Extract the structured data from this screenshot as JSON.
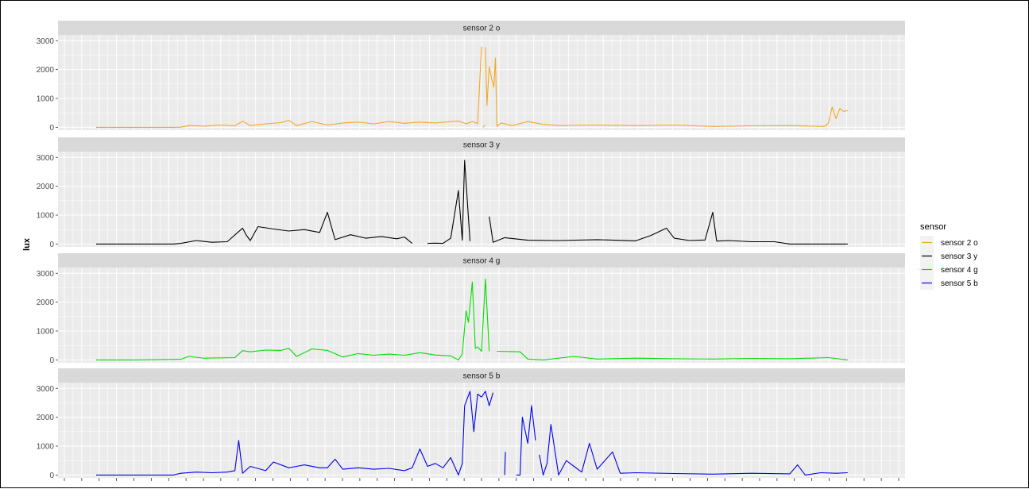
{
  "chart_data": {
    "type": "line",
    "ylabel": "lux",
    "xlabel": "",
    "ylim": [
      -100,
      3200
    ],
    "yticks": [
      0,
      1000,
      2000,
      3000
    ],
    "ytick_labels": [
      "0",
      "1000",
      "2000",
      "3000"
    ],
    "xlim": [
      0,
      1000
    ],
    "grid": true,
    "legend": {
      "title": "sensor",
      "placement": "right"
    },
    "colors": {
      "panel_bg": "#ebebeb",
      "strip_bg": "#d9d9d9",
      "grid": "#ffffff"
    },
    "series": [
      {
        "name": "sensor 2 o",
        "facet_label": "sensor 2 o",
        "color": "#f5a623",
        "segments": [
          [
            [
              0,
              0
            ],
            [
              50,
              0
            ],
            [
              100,
              0
            ],
            [
              110,
              5
            ],
            [
              120,
              60
            ],
            [
              140,
              40
            ],
            [
              160,
              80
            ],
            [
              180,
              50
            ],
            [
              190,
              210
            ],
            [
              200,
              60
            ],
            [
              220,
              120
            ],
            [
              240,
              160
            ],
            [
              250,
              240
            ],
            [
              260,
              60
            ],
            [
              280,
              200
            ],
            [
              300,
              80
            ],
            [
              320,
              150
            ],
            [
              340,
              180
            ],
            [
              360,
              120
            ],
            [
              380,
              200
            ],
            [
              400,
              140
            ],
            [
              420,
              180
            ],
            [
              440,
              150
            ],
            [
              460,
              200
            ],
            [
              470,
              220
            ],
            [
              480,
              120
            ],
            [
              488,
              200
            ],
            [
              495,
              130
            ],
            [
              500,
              2800
            ]
          ],
          [
            [
              502,
              0
            ],
            [
              504,
              80
            ]
          ],
          [
            [
              505,
              2780
            ],
            [
              507,
              760
            ],
            [
              510,
              2100
            ],
            [
              513,
              1700
            ],
            [
              516,
              1400
            ],
            [
              518,
              2400
            ],
            [
              520,
              30
            ],
            [
              525,
              150
            ],
            [
              540,
              60
            ],
            [
              560,
              200
            ],
            [
              580,
              100
            ],
            [
              600,
              60
            ],
            [
              650,
              80
            ],
            [
              700,
              60
            ],
            [
              750,
              80
            ],
            [
              800,
              30
            ],
            [
              850,
              50
            ],
            [
              900,
              60
            ],
            [
              945,
              30
            ],
            [
              950,
              140
            ],
            [
              955,
              700
            ],
            [
              960,
              300
            ],
            [
              965,
              650
            ],
            [
              970,
              550
            ],
            [
              975,
              580
            ]
          ]
        ]
      },
      {
        "name": "sensor 3 y",
        "facet_label": "sensor 3 y",
        "color": "#000000",
        "segments": [
          [
            [
              0,
              0
            ],
            [
              50,
              0
            ],
            [
              100,
              0
            ],
            [
              110,
              20
            ],
            [
              130,
              120
            ],
            [
              150,
              60
            ],
            [
              170,
              80
            ],
            [
              190,
              550
            ],
            [
              195,
              300
            ],
            [
              200,
              120
            ],
            [
              210,
              600
            ],
            [
              230,
              520
            ],
            [
              250,
              450
            ],
            [
              270,
              500
            ],
            [
              290,
              400
            ],
            [
              300,
              1100
            ],
            [
              310,
              150
            ],
            [
              330,
              320
            ],
            [
              350,
              200
            ],
            [
              370,
              260
            ],
            [
              390,
              180
            ],
            [
              400,
              240
            ],
            [
              410,
              20
            ]
          ],
          [
            [
              430,
              20
            ],
            [
              440,
              30
            ],
            [
              450,
              20
            ],
            [
              460,
              200
            ],
            [
              470,
              1850
            ],
            [
              475,
              130
            ],
            [
              478,
              2900
            ],
            [
              485,
              100
            ]
          ],
          [
            [
              510,
              950
            ],
            [
              515,
              60
            ],
            [
              530,
              220
            ],
            [
              560,
              130
            ],
            [
              600,
              120
            ],
            [
              650,
              150
            ],
            [
              700,
              110
            ],
            [
              720,
              300
            ],
            [
              740,
              550
            ],
            [
              750,
              200
            ],
            [
              770,
              120
            ],
            [
              790,
              140
            ],
            [
              800,
              1100
            ],
            [
              805,
              100
            ],
            [
              820,
              120
            ],
            [
              850,
              80
            ],
            [
              880,
              80
            ],
            [
              900,
              0
            ],
            [
              975,
              0
            ]
          ]
        ]
      },
      {
        "name": "sensor 4 g",
        "facet_label": "sensor 4 g",
        "color": "#00dd00",
        "segments": [
          [
            [
              0,
              0
            ],
            [
              50,
              0
            ],
            [
              110,
              20
            ],
            [
              120,
              120
            ],
            [
              140,
              60
            ],
            [
              180,
              80
            ],
            [
              190,
              320
            ],
            [
              200,
              280
            ],
            [
              220,
              340
            ],
            [
              240,
              330
            ],
            [
              250,
              400
            ],
            [
              260,
              120
            ],
            [
              280,
              380
            ],
            [
              300,
              330
            ],
            [
              320,
              100
            ],
            [
              340,
              220
            ],
            [
              360,
              160
            ],
            [
              380,
              200
            ],
            [
              400,
              160
            ],
            [
              420,
              250
            ],
            [
              440,
              170
            ],
            [
              460,
              140
            ],
            [
              470,
              0
            ],
            [
              475,
              200
            ],
            [
              480,
              1700
            ],
            [
              483,
              1300
            ],
            [
              488,
              2700
            ],
            [
              492,
              400
            ],
            [
              495,
              450
            ],
            [
              500,
              300
            ],
            [
              505,
              2800
            ],
            [
              510,
              300
            ]
          ],
          [
            [
              520,
              300
            ],
            [
              550,
              280
            ],
            [
              560,
              30
            ],
            [
              580,
              0
            ],
            [
              620,
              120
            ],
            [
              650,
              30
            ],
            [
              700,
              60
            ],
            [
              750,
              40
            ],
            [
              800,
              30
            ],
            [
              850,
              50
            ],
            [
              900,
              40
            ],
            [
              950,
              80
            ],
            [
              975,
              0
            ]
          ]
        ]
      },
      {
        "name": "sensor 5 b",
        "facet_label": "sensor 5 b",
        "color": "#0000ee",
        "segments": [
          [
            [
              0,
              0
            ],
            [
              50,
              0
            ],
            [
              100,
              0
            ],
            [
              110,
              60
            ],
            [
              130,
              100
            ],
            [
              150,
              80
            ],
            [
              170,
              100
            ],
            [
              180,
              150
            ],
            [
              185,
              1200
            ],
            [
              190,
              60
            ],
            [
              200,
              300
            ],
            [
              220,
              150
            ],
            [
              230,
              450
            ],
            [
              250,
              250
            ],
            [
              260,
              300
            ],
            [
              270,
              350
            ],
            [
              290,
              250
            ],
            [
              300,
              250
            ],
            [
              310,
              550
            ],
            [
              320,
              200
            ],
            [
              340,
              250
            ],
            [
              360,
              200
            ],
            [
              380,
              230
            ],
            [
              400,
              150
            ],
            [
              410,
              250
            ],
            [
              420,
              900
            ],
            [
              430,
              300
            ],
            [
              440,
              400
            ],
            [
              450,
              250
            ],
            [
              460,
              600
            ],
            [
              470,
              0
            ],
            [
              475,
              400
            ],
            [
              478,
              2400
            ],
            [
              485,
              2900
            ],
            [
              490,
              1500
            ],
            [
              495,
              2800
            ],
            [
              500,
              2700
            ],
            [
              505,
              2900
            ],
            [
              510,
              2400
            ],
            [
              515,
              2850
            ]
          ],
          [
            [
              530,
              0
            ],
            [
              531,
              800
            ]
          ],
          [
            [
              545,
              0
            ],
            [
              550,
              0
            ],
            [
              553,
              2000
            ],
            [
              560,
              1100
            ],
            [
              565,
              2400
            ],
            [
              570,
              1200
            ]
          ],
          [
            [
              575,
              700
            ],
            [
              580,
              0
            ],
            [
              585,
              400
            ],
            [
              590,
              1750
            ],
            [
              600,
              0
            ],
            [
              610,
              500
            ],
            [
              620,
              300
            ],
            [
              630,
              100
            ],
            [
              640,
              1100
            ],
            [
              650,
              200
            ],
            [
              660,
              500
            ],
            [
              670,
              800
            ],
            [
              680,
              60
            ],
            [
              700,
              80
            ],
            [
              750,
              50
            ],
            [
              800,
              30
            ],
            [
              850,
              60
            ],
            [
              900,
              40
            ],
            [
              910,
              350
            ],
            [
              920,
              0
            ],
            [
              940,
              80
            ],
            [
              960,
              60
            ],
            [
              975,
              80
            ]
          ]
        ]
      }
    ]
  }
}
